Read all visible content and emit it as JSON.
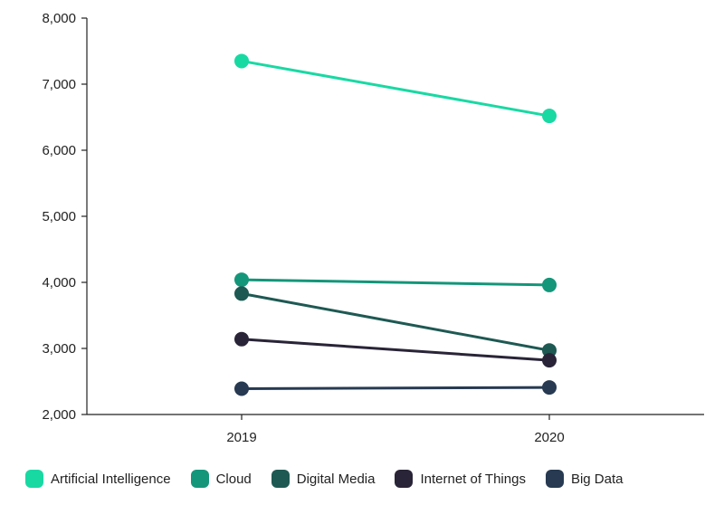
{
  "chart_data": {
    "type": "line",
    "categories": [
      "2019",
      "2020"
    ],
    "ylim": [
      2000,
      8000
    ],
    "yticks": [
      "2,000",
      "3,000",
      "4,000",
      "5,000",
      "6,000",
      "7,000",
      "8,000"
    ],
    "ytick_values": [
      2000,
      3000,
      4000,
      5000,
      6000,
      7000,
      8000
    ],
    "grid": false,
    "legend_position": "bottom",
    "series": [
      {
        "name": "Artificial Intelligence",
        "values": [
          7350,
          6520
        ],
        "color": "#19d9a3"
      },
      {
        "name": "Cloud",
        "values": [
          4040,
          3960
        ],
        "color": "#14967a"
      },
      {
        "name": "Digital Media",
        "values": [
          3830,
          2970
        ],
        "color": "#1e5953"
      },
      {
        "name": "Internet of Things",
        "values": [
          3140,
          2820
        ],
        "color": "#2a2438"
      },
      {
        "name": "Big Data",
        "values": [
          2390,
          2410
        ],
        "color": "#273a52"
      }
    ]
  }
}
